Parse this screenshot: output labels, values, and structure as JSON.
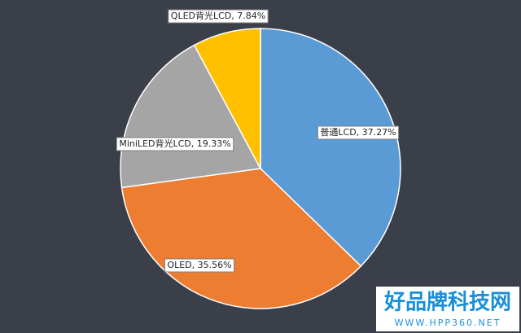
{
  "chart_data": {
    "type": "pie",
    "categories": [
      "普通LCD",
      "OLED",
      "MiniLED背光LCD",
      "QLED背光LCD"
    ],
    "values": [
      37.27,
      35.56,
      19.33,
      7.84
    ],
    "value_labels": [
      "普通LCD, 37.27%",
      "OLED, 35.56%",
      "MiniLED背光LCD, 19.33%",
      "QLED背光LCD, 7.84%"
    ],
    "colors": [
      "#5b9bd5",
      "#ed7d31",
      "#a5a5a5",
      "#ffc000"
    ]
  },
  "watermark": {
    "title": "好品牌科技网",
    "url": "WWW.HPP360.NET"
  }
}
